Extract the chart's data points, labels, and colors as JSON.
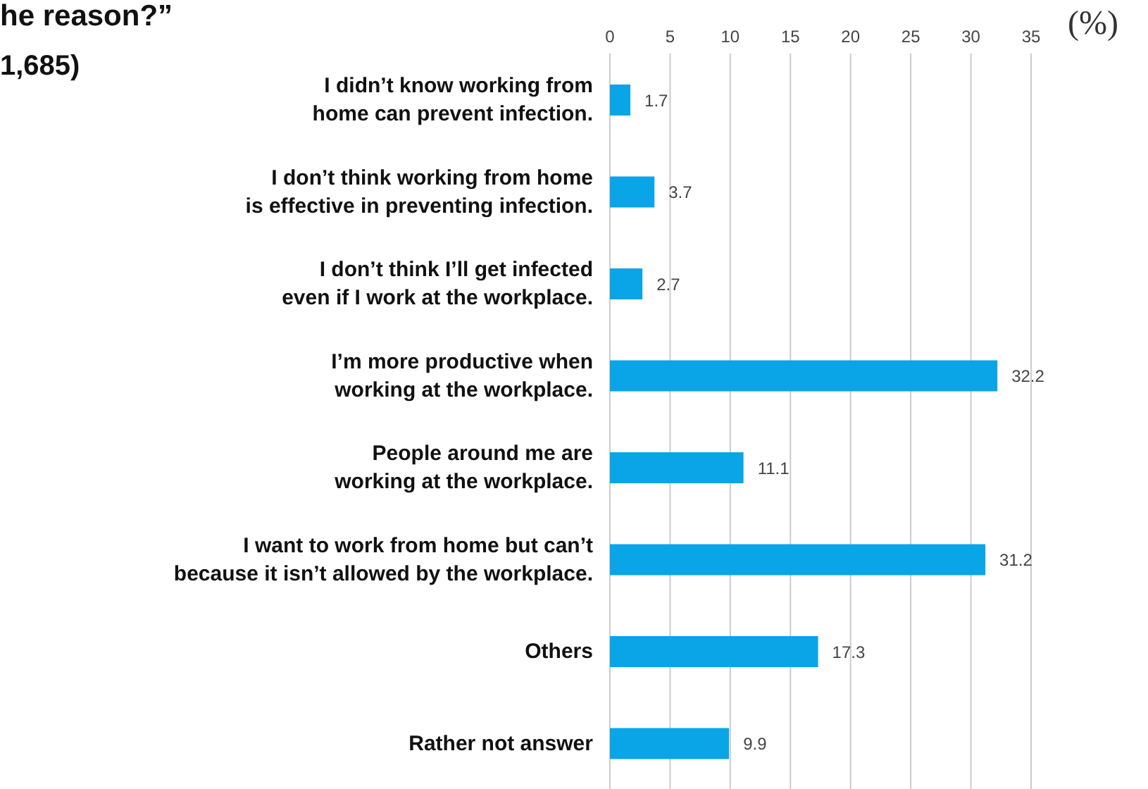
{
  "chart_data": {
    "type": "bar",
    "orientation": "horizontal",
    "title": "he reason?”",
    "subtitle": "1,685)",
    "xlabel": "(%)",
    "categories": [
      "I didn’t know working from home can prevent infection.",
      "I don’t think working from home is effective in preventing infection.",
      "I don’t think I’ll get infected even if I work at the workplace.",
      "I’m more productive when working at the workplace.",
      "People around me are working at the workplace.",
      "I want to work from home but can’t because it isn’t allowed by the workplace.",
      "Others",
      "Rather not answer"
    ],
    "values": [
      1.7,
      3.7,
      2.7,
      32.2,
      11.1,
      31.2,
      17.3,
      9.9
    ],
    "color": "#0aa5e6",
    "xlim": [
      0,
      35
    ],
    "xticks": [
      0,
      5,
      10,
      15,
      20,
      25,
      30,
      35
    ],
    "grid": "x",
    "data_labels": true,
    "legend": false
  }
}
